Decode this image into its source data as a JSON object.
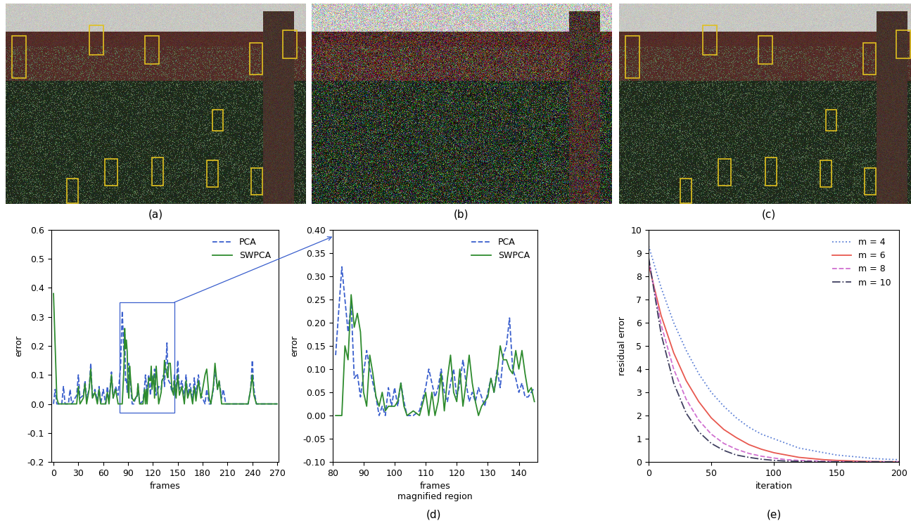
{
  "panel_labels": [
    "(a)",
    "(b)",
    "(c)",
    "(d)",
    "(e)"
  ],
  "chart_data": [
    {
      "type": "line",
      "x_label": "frames",
      "y_label": "error",
      "xlim": [
        -3,
        272
      ],
      "ylim": [
        -0.2,
        0.6
      ],
      "xticks": [
        0,
        30,
        60,
        90,
        120,
        150,
        180,
        210,
        240,
        270
      ],
      "yticks": [
        -0.2,
        -0.1,
        0.0,
        0.1,
        0.2,
        0.3,
        0.4,
        0.5,
        0.6
      ],
      "legend": "upper right",
      "x": [
        0,
        2,
        4,
        6,
        10,
        12,
        14,
        18,
        20,
        22,
        28,
        30,
        32,
        36,
        38,
        40,
        43,
        45,
        47,
        50,
        53,
        55,
        57,
        60,
        63,
        65,
        67,
        70,
        72,
        75,
        78,
        81,
        83,
        85,
        86,
        87,
        88,
        89,
        90,
        91,
        92,
        93,
        95,
        97,
        99,
        101,
        102,
        104,
        108,
        110,
        111,
        112,
        113,
        115,
        117,
        118,
        119,
        121,
        122,
        124,
        127,
        130,
        131,
        133,
        134,
        135,
        136,
        137,
        138,
        139,
        141,
        143,
        145,
        146,
        148,
        150,
        152,
        155,
        158,
        160,
        162,
        165,
        168,
        170,
        172,
        175,
        178,
        180,
        183,
        185,
        188,
        190,
        193,
        195,
        198,
        200,
        203,
        205,
        208,
        210,
        235,
        238,
        240,
        242,
        245,
        270
      ],
      "series": [
        {
          "name": "PCA",
          "color": "#3a5fcd",
          "line_style": "dashed",
          "values": [
            0,
            0.05,
            0,
            0,
            0,
            0.06,
            0,
            0,
            0.05,
            0,
            0.03,
            0.1,
            0.02,
            0.03,
            0.08,
            0.02,
            0.05,
            0.14,
            0.02,
            0.05,
            0.01,
            0.06,
            0,
            0.05,
            0,
            0.06,
            0.01,
            0.11,
            0.02,
            0.06,
            0.03,
            0.13,
            0.32,
            0.18,
            0.24,
            0.08,
            0.09,
            0.04,
            0.09,
            0.14,
            0.1,
            0.07,
            0.0,
            0.0,
            0.02,
            0.02,
            0.07,
            0.0,
            0.01,
            0.06,
            0.1,
            0.07,
            0.04,
            0.1,
            0.03,
            0.07,
            0.1,
            0.07,
            0.12,
            0.03,
            0.06,
            0.05,
            0.08,
            0.1,
            0.06,
            0.13,
            0.15,
            0.21,
            0.1,
            0.08,
            0.07,
            0.04,
            0.06,
            0.1,
            0.04,
            0.15,
            0.05,
            0.08,
            0.02,
            0.1,
            0.03,
            0.07,
            0.01,
            0.09,
            0.03,
            0.1,
            0.03,
            0.02,
            0,
            0.05,
            0,
            0,
            0.05,
            0.12,
            0.05,
            0.08,
            0.02,
            0.05,
            0,
            0,
            0,
            0.05,
            0.15,
            0.05,
            0,
            0
          ]
        },
        {
          "name": "SWPCA",
          "color": "#2e8b2e",
          "line_style": "solid",
          "values": [
            0.38,
            0.2,
            0.02,
            0,
            0,
            0,
            0,
            0,
            0,
            0,
            0,
            0.06,
            0,
            0.02,
            0.07,
            0,
            0.05,
            0.12,
            0.02,
            0.04,
            0,
            0.05,
            0,
            0,
            0,
            0.04,
            0,
            0.1,
            0.02,
            0.05,
            0,
            0,
            0,
            0.12,
            0.26,
            0.19,
            0.22,
            0.18,
            0.05,
            0.02,
            0.13,
            0.09,
            0.02,
            0.01,
            0.02,
            0.03,
            0.07,
            0,
            0,
            0.05,
            0,
            0.05,
            0,
            0.09,
            0.08,
            0.13,
            0.05,
            0.1,
            0.02,
            0.13,
            0,
            0.04,
            0.08,
            0.09,
            0.15,
            0.12,
            0.12,
            0.1,
            0.09,
            0.14,
            0.14,
            0.05,
            0.03,
            0.08,
            0.02,
            0.1,
            0.03,
            0.06,
            0,
            0.08,
            0.02,
            0.05,
            0,
            0.06,
            0.01,
            0.08,
            0.02,
            0.05,
            0.1,
            0.12,
            0.02,
            0,
            0.06,
            0.14,
            0.05,
            0.08,
            0,
            0,
            0,
            0,
            0,
            0.05,
            0.1,
            0.03,
            0,
            0
          ]
        }
      ]
    },
    {
      "type": "line",
      "x_label": "frames\nmagnified region",
      "y_label": "error",
      "xlim": [
        80,
        146
      ],
      "ylim": [
        -0.1,
        0.4
      ],
      "xticks": [
        80,
        90,
        100,
        110,
        120,
        130,
        140
      ],
      "yticks": [
        {
          "value": -0.1,
          "label": "-0.10"
        },
        {
          "value": -0.05,
          "label": "-0.05"
        },
        {
          "value": 0.0,
          "label": "0.00"
        },
        {
          "value": 0.05,
          "label": "0.05"
        },
        {
          "value": 0.1,
          "label": "0.10"
        },
        {
          "value": 0.15,
          "label": "0.15"
        },
        {
          "value": 0.2,
          "label": "0.20"
        },
        {
          "value": 0.25,
          "label": "0.25"
        },
        {
          "value": 0.3,
          "label": "0.30"
        },
        {
          "value": 0.35,
          "label": "0.35"
        },
        {
          "value": 0.4,
          "label": "0.40"
        }
      ],
      "legend": "upper right",
      "x": [
        81,
        83,
        84,
        85,
        86,
        87,
        88,
        89,
        90,
        91,
        92,
        93,
        94,
        95,
        96,
        97,
        98,
        99,
        100,
        101,
        102,
        103,
        104,
        106,
        108,
        110,
        111,
        112,
        113,
        114,
        115,
        116,
        117,
        118,
        119,
        120,
        121,
        122,
        123,
        124,
        125,
        126,
        127,
        128,
        129,
        130,
        131,
        132,
        133,
        134,
        135,
        136,
        137,
        138,
        139,
        140,
        141,
        142,
        143,
        144,
        145
      ],
      "series": [
        {
          "name": "PCA",
          "color": "#3a5fcd",
          "line_style": "dashed",
          "values": [
            0.13,
            0.32,
            0.25,
            0.18,
            0.24,
            0.08,
            0.09,
            0.04,
            0.09,
            0.14,
            0.1,
            0.07,
            0.04,
            0.0,
            0.02,
            0.0,
            0.06,
            0.02,
            0.06,
            0.02,
            0.07,
            0.03,
            0.0,
            0.0,
            0.01,
            0.06,
            0.1,
            0.07,
            0.04,
            0.06,
            0.1,
            0.05,
            0.03,
            0.07,
            0.1,
            0.04,
            0.07,
            0.12,
            0.07,
            0.03,
            0.05,
            0.03,
            0.06,
            0.04,
            0.02,
            0.05,
            0.08,
            0.05,
            0.1,
            0.06,
            0.13,
            0.15,
            0.21,
            0.1,
            0.08,
            0.05,
            0.07,
            0.04,
            0.04,
            0.05,
            0.06
          ]
        },
        {
          "name": "SWPCA",
          "color": "#2e8b2e",
          "line_style": "solid",
          "values": [
            0,
            0,
            0.15,
            0.12,
            0.26,
            0.19,
            0.22,
            0.18,
            0.05,
            0.02,
            0.13,
            0.09,
            0.04,
            0.02,
            0.05,
            0.01,
            0.02,
            0.02,
            0.02,
            0.03,
            0.07,
            0.02,
            0,
            0.01,
            0,
            0.05,
            0,
            0.05,
            0,
            0.03,
            0.09,
            0.01,
            0.08,
            0.13,
            0.05,
            0.03,
            0.1,
            0.02,
            0.07,
            0.13,
            0.07,
            0.03,
            0,
            0.02,
            0.03,
            0.04,
            0.08,
            0.05,
            0.09,
            0.15,
            0.12,
            0.12,
            0.1,
            0.09,
            0.14,
            0.1,
            0.14,
            0.09,
            0.05,
            0.06,
            0.03
          ]
        }
      ]
    },
    {
      "type": "line",
      "x_label": "iteration",
      "y_label": "residual error",
      "xlim": [
        0,
        200
      ],
      "ylim": [
        0,
        10
      ],
      "xticks": [
        0,
        50,
        100,
        150,
        200
      ],
      "yticks": [
        0,
        1,
        2,
        3,
        4,
        5,
        6,
        7,
        8,
        9,
        10
      ],
      "legend": "upper right",
      "x": [
        0,
        10,
        20,
        30,
        40,
        50,
        60,
        70,
        80,
        90,
        100,
        110,
        120,
        130,
        140,
        150,
        160,
        170,
        180,
        190,
        200
      ],
      "series": [
        {
          "name": "m = 4",
          "color": "#5b7fd6",
          "line_style": "dotted",
          "values": [
            9.3,
            7.5,
            6.0,
            4.8,
            3.8,
            3.0,
            2.4,
            1.9,
            1.5,
            1.2,
            1.0,
            0.8,
            0.6,
            0.5,
            0.4,
            0.3,
            0.25,
            0.2,
            0.15,
            0.12,
            0.1
          ]
        },
        {
          "name": "m = 6",
          "color": "#e8584f",
          "line_style": "solid",
          "values": [
            8.5,
            6.3,
            4.7,
            3.5,
            2.6,
            1.9,
            1.4,
            1.05,
            0.75,
            0.55,
            0.4,
            0.3,
            0.2,
            0.15,
            0.1,
            0.07,
            0.05,
            0.03,
            0.02,
            0.01,
            0.01
          ]
        },
        {
          "name": "m = 8",
          "color": "#d070d0",
          "line_style": "dashed",
          "values": [
            8.7,
            5.9,
            4.0,
            2.7,
            1.8,
            1.2,
            0.8,
            0.55,
            0.37,
            0.25,
            0.17,
            0.1,
            0.07,
            0.05,
            0.03,
            0.02,
            0.01,
            0.01,
            0.01,
            0.01,
            0.01
          ]
        },
        {
          "name": "m = 10",
          "color": "#404060",
          "line_style": "dashdot",
          "values": [
            8.8,
            5.5,
            3.4,
            2.1,
            1.3,
            0.8,
            0.5,
            0.3,
            0.2,
            0.12,
            0.07,
            0.04,
            0.03,
            0.02,
            0.01,
            0.01,
            0.01,
            0.01,
            0.01,
            0.01,
            0.01
          ]
        }
      ]
    }
  ]
}
